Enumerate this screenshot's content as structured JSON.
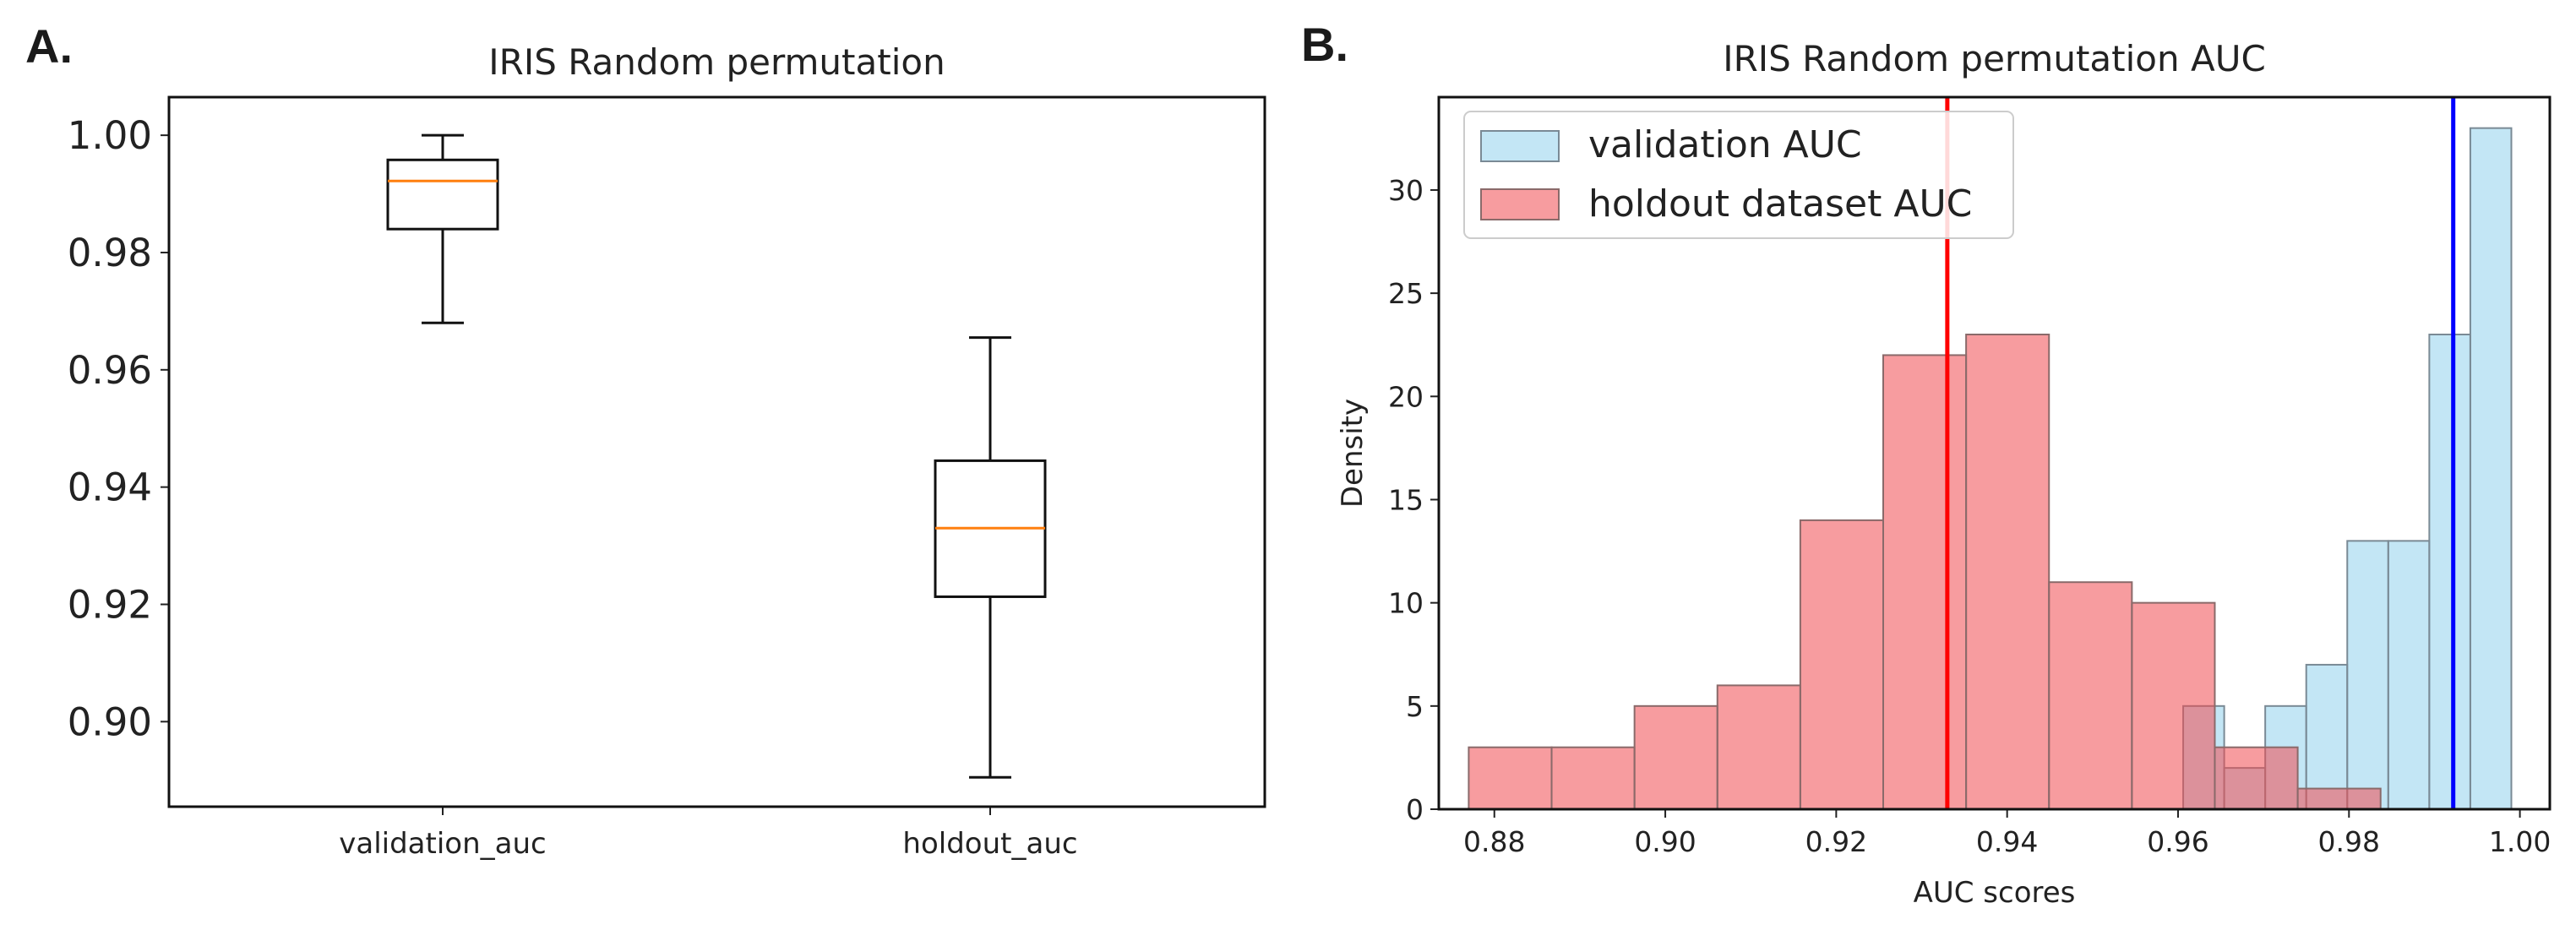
{
  "panels": {
    "a_label": "A.",
    "b_label": "B."
  },
  "colors": {
    "box_median": "#ff7f0e",
    "validation_fill": "#87ceeb",
    "holdout_fill": "#f04a50",
    "validation_line": "#0000ff",
    "holdout_line": "#ff0000"
  },
  "chart_data": [
    {
      "type": "box",
      "title": "IRIS Random permutation",
      "xlabel": "",
      "ylabel": "",
      "ylim": [
        0.8855,
        1.0065
      ],
      "yticks": [
        "0.90",
        "0.92",
        "0.94",
        "0.96",
        "0.98",
        "1.00"
      ],
      "ytick_values": [
        0.9,
        0.92,
        0.94,
        0.96,
        0.98,
        1.0
      ],
      "categories": [
        "validation_auc",
        "holdout_auc"
      ],
      "boxes": [
        {
          "name": "validation_auc",
          "whisker_low": 0.968,
          "q1": 0.984,
          "median": 0.9922,
          "q3": 0.9958,
          "whisker_high": 1.0
        },
        {
          "name": "holdout_auc",
          "whisker_low": 0.8905,
          "q1": 0.9213,
          "median": 0.933,
          "q3": 0.9445,
          "whisker_high": 0.9655
        }
      ]
    },
    {
      "type": "histogram",
      "title": "IRIS Random permutation AUC",
      "xlabel": "AUC scores",
      "ylabel": "Density",
      "xlim": [
        0.8735,
        1.0035
      ],
      "ylim": [
        0,
        34.5
      ],
      "xticks": [
        "0.88",
        "0.90",
        "0.92",
        "0.94",
        "0.96",
        "0.98",
        "1.00"
      ],
      "xtick_values": [
        0.88,
        0.9,
        0.92,
        0.94,
        0.96,
        0.98,
        1.0
      ],
      "yticks": [
        "0",
        "5",
        "10",
        "15",
        "20",
        "25",
        "30"
      ],
      "ytick_values": [
        0,
        5,
        10,
        15,
        20,
        25,
        30
      ],
      "legend": "top-left",
      "series": [
        {
          "name": "validation AUC",
          "bins": [
            {
              "x0": 0.9606,
              "x1": 0.9654,
              "value": 5
            },
            {
              "x0": 0.9654,
              "x1": 0.9702,
              "value": 2
            },
            {
              "x0": 0.9702,
              "x1": 0.975,
              "value": 5
            },
            {
              "x0": 0.975,
              "x1": 0.9798,
              "value": 7
            },
            {
              "x0": 0.9798,
              "x1": 0.9846,
              "value": 13
            },
            {
              "x0": 0.9846,
              "x1": 0.9894,
              "value": 13
            },
            {
              "x0": 0.9894,
              "x1": 0.9942,
              "value": 23
            },
            {
              "x0": 0.9942,
              "x1": 0.999,
              "value": 33
            }
          ],
          "mean": 0.9922
        },
        {
          "name": "holdout dataset AUC",
          "bins": [
            {
              "x0": 0.877,
              "x1": 0.8867,
              "value": 3
            },
            {
              "x0": 0.8867,
              "x1": 0.8964,
              "value": 3
            },
            {
              "x0": 0.8964,
              "x1": 0.9061,
              "value": 5
            },
            {
              "x0": 0.9061,
              "x1": 0.9158,
              "value": 6
            },
            {
              "x0": 0.9158,
              "x1": 0.9255,
              "value": 14
            },
            {
              "x0": 0.9255,
              "x1": 0.9352,
              "value": 22
            },
            {
              "x0": 0.9352,
              "x1": 0.9449,
              "value": 23
            },
            {
              "x0": 0.9449,
              "x1": 0.9546,
              "value": 11
            },
            {
              "x0": 0.9546,
              "x1": 0.9643,
              "value": 10
            },
            {
              "x0": 0.9643,
              "x1": 0.974,
              "value": 3
            },
            {
              "x0": 0.974,
              "x1": 0.9837,
              "value": 1
            }
          ],
          "mean": 0.933
        }
      ]
    }
  ]
}
